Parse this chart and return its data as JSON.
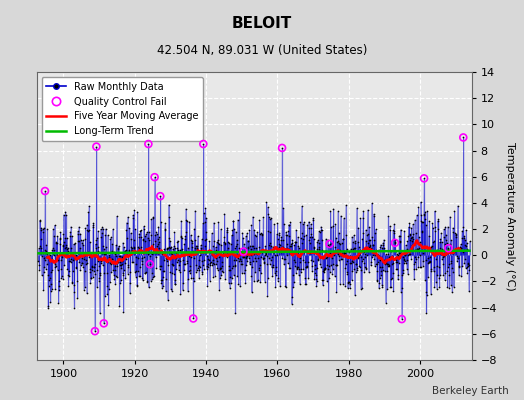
{
  "title": "BELOIT",
  "subtitle": "42.504 N, 89.031 W (United States)",
  "ylabel": "Temperature Anomaly (°C)",
  "attribution": "Berkeley Earth",
  "start_year": 1893,
  "end_year": 2014,
  "ylim": [
    -8,
    14
  ],
  "yticks": [
    -8,
    -6,
    -4,
    -2,
    0,
    2,
    4,
    6,
    8,
    10,
    12,
    14
  ],
  "xticks": [
    1900,
    1920,
    1940,
    1960,
    1980,
    2000
  ],
  "bg_color": "#d8d8d8",
  "plot_bg_color": "#e8e8e8",
  "raw_line_color": "#0000cc",
  "raw_dot_color": "#000000",
  "raw_fill_color": "#8888dd",
  "qc_fail_color": "#ff00ff",
  "moving_avg_color": "#ff0000",
  "trend_color": "#00bb00",
  "grid_color": "#ffffff",
  "legend_loc": "upper left",
  "moving_avg_window": 60,
  "seed": 12345
}
